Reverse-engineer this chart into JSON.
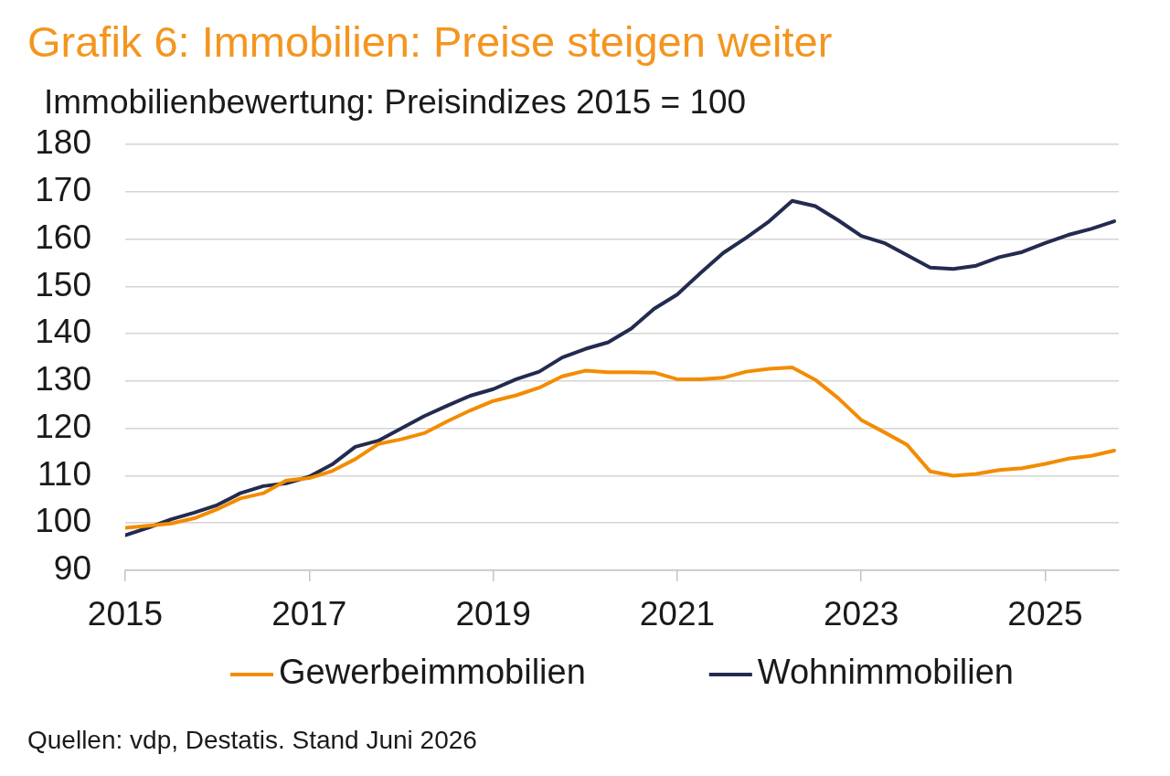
{
  "chart_data": {
    "type": "line",
    "title": "Grafik 6: Immobilien: Preise steigen weiter",
    "subtitle": "Immobilienbewertung: Preisindizes 2015 = 100",
    "x": [
      2015,
      2015.25,
      2015.5,
      2015.75,
      2016,
      2016.25,
      2016.5,
      2016.75,
      2017,
      2017.25,
      2017.5,
      2017.75,
      2018,
      2018.25,
      2018.5,
      2018.75,
      2019,
      2019.25,
      2019.5,
      2019.75,
      2020,
      2020.25,
      2020.5,
      2020.75,
      2021,
      2021.25,
      2021.5,
      2021.75,
      2022,
      2022.25,
      2022.5,
      2022.75,
      2023,
      2023.25,
      2023.5,
      2023.75,
      2024,
      2024.25,
      2024.5,
      2024.75,
      2025,
      2025.25,
      2025.5,
      2025.75
    ],
    "series": [
      {
        "name": "Gewerbeimmobilien",
        "color": "#f28c00",
        "values": [
          99.0,
          99.4,
          99.9,
          101.0,
          102.9,
          105.2,
          106.3,
          109.0,
          109.5,
          111.0,
          113.5,
          116.7,
          117.7,
          119.0,
          121.5,
          123.8,
          125.8,
          127.0,
          128.6,
          131.0,
          132.2,
          131.9,
          131.9,
          131.8,
          130.4,
          130.4,
          130.7,
          132.0,
          132.6,
          132.9,
          130.3,
          126.4,
          121.8,
          119.2,
          116.5,
          110.9,
          110.0,
          110.4,
          111.2,
          111.6,
          112.5,
          113.6,
          114.2,
          115.3
        ]
      },
      {
        "name": "Wohnimmobilien",
        "color": "#232b4f",
        "values": [
          97.4,
          99.0,
          100.8,
          102.2,
          103.8,
          106.3,
          107.8,
          108.4,
          109.8,
          112.4,
          116.1,
          117.4,
          120.0,
          122.6,
          124.8,
          126.9,
          128.3,
          130.4,
          132.0,
          135.0,
          136.8,
          138.2,
          141.1,
          145.3,
          148.3,
          152.8,
          157.1,
          160.3,
          163.8,
          168.1,
          167.0,
          164.0,
          160.7,
          159.2,
          156.6,
          154.0,
          153.7,
          154.4,
          156.2,
          157.3,
          159.2,
          160.9,
          162.2,
          163.8
        ]
      }
    ],
    "xlim": [
      2015,
      2025.8
    ],
    "xticks": [
      2015,
      2017,
      2019,
      2021,
      2023,
      2025
    ],
    "ylim": [
      90,
      180
    ],
    "yticks": [
      90,
      100,
      110,
      120,
      130,
      140,
      150,
      160,
      170,
      180
    ],
    "grid": "y",
    "legend": "bottom",
    "marker": "none",
    "line_style": "solid",
    "annotations": [
      "Quellen: vdp, Destatis. Stand Juni 2026"
    ]
  }
}
